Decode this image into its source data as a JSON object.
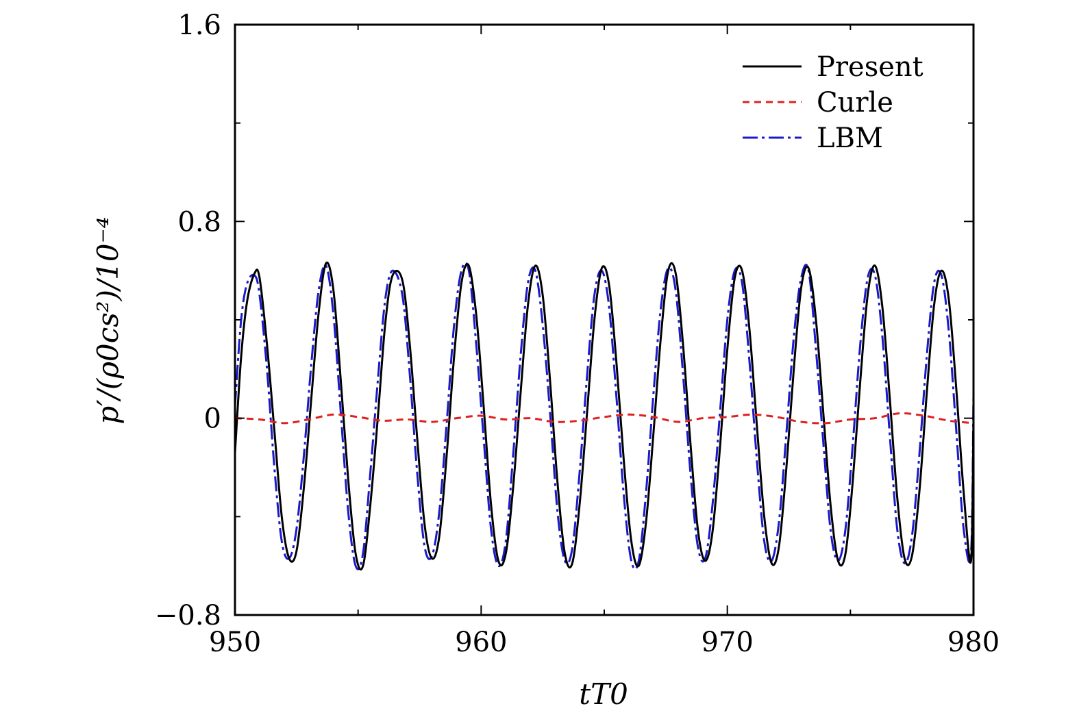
{
  "chart_data": {
    "type": "line",
    "xlabel": "tT0",
    "ylabel": "p′/(ρ0cs²)/10⁻⁴",
    "xlim": [
      950,
      980
    ],
    "ylim": [
      -0.8,
      1.6
    ],
    "x_ticks": [
      950,
      960,
      970,
      980
    ],
    "y_ticks": [
      -0.8,
      0,
      0.8,
      1.6
    ],
    "x_tick_labels": [
      "950",
      "960",
      "970",
      "980"
    ],
    "y_tick_labels": [
      "−0.8",
      "0",
      "0.8",
      "1.6"
    ],
    "grid": false,
    "legend_position": "top-right",
    "series": [
      {
        "name": "Present",
        "color": "#000000",
        "style": "solid",
        "x": [
          950.0,
          950.25,
          950.5,
          950.8,
          951.0,
          951.3,
          951.6,
          951.9,
          952.2,
          952.5,
          952.8,
          953.1,
          953.4,
          953.7,
          954.0,
          954.3,
          954.6,
          954.9,
          955.2,
          955.5,
          955.8,
          956.1,
          956.4,
          956.8,
          957.1,
          957.4,
          957.7,
          958.0,
          958.3,
          958.6,
          958.9,
          959.2,
          959.5,
          959.8,
          960.1,
          960.4,
          960.7,
          961.0,
          961.3,
          961.6,
          961.9,
          962.2,
          962.5,
          962.8,
          963.1,
          963.4,
          963.7,
          964.0,
          964.3,
          964.6,
          964.9,
          965.2,
          965.5,
          965.8,
          966.1,
          966.4,
          966.7,
          967.0,
          967.3,
          967.6,
          967.9,
          968.2,
          968.5,
          968.8,
          969.1,
          969.4,
          969.7,
          970.0,
          970.3,
          970.6,
          970.9,
          971.2,
          971.5,
          971.8,
          972.1,
          972.4,
          972.7,
          973.0,
          973.3,
          973.6,
          973.9,
          974.2,
          974.5,
          974.8,
          975.1,
          975.4,
          975.7,
          976.0,
          976.3,
          976.6,
          976.9,
          977.2,
          977.5,
          977.8,
          978.1,
          978.4,
          978.7,
          979.0,
          979.3,
          979.6,
          979.9,
          980.0
        ],
        "y": [
          -0.14,
          0.25,
          0.48,
          0.59,
          0.57,
          0.3,
          -0.05,
          -0.4,
          -0.57,
          -0.54,
          -0.28,
          0.08,
          0.43,
          0.63,
          0.52,
          0.15,
          -0.25,
          -0.55,
          -0.6,
          -0.35,
          0.0,
          0.38,
          0.58,
          0.56,
          0.3,
          -0.08,
          -0.43,
          -0.57,
          -0.48,
          -0.15,
          0.25,
          0.55,
          0.62,
          0.42,
          0.05,
          -0.35,
          -0.58,
          -0.55,
          -0.28,
          0.1,
          0.46,
          0.62,
          0.5,
          0.15,
          -0.26,
          -0.55,
          -0.59,
          -0.35,
          0.02,
          0.4,
          0.61,
          0.54,
          0.22,
          -0.18,
          -0.5,
          -0.6,
          -0.42,
          -0.06,
          0.33,
          0.6,
          0.59,
          0.3,
          -0.1,
          -0.45,
          -0.58,
          -0.46,
          -0.12,
          0.28,
          0.57,
          0.6,
          0.36,
          -0.03,
          -0.4,
          -0.59,
          -0.52,
          -0.2,
          0.2,
          0.53,
          0.61,
          0.4,
          0.02,
          -0.36,
          -0.58,
          -0.55,
          -0.25,
          0.15,
          0.5,
          0.62,
          0.45,
          0.08,
          -0.32,
          -0.57,
          -0.56,
          -0.3,
          0.1,
          0.46,
          0.6,
          0.48,
          0.12,
          -0.3,
          -0.58,
          0.0
        ]
      },
      {
        "name": "Curle",
        "color": "#e02020",
        "style": "dashed",
        "x": [
          950,
          951,
          952,
          953,
          954,
          955,
          956,
          957,
          958,
          959,
          960,
          961,
          962,
          963,
          964,
          965,
          966,
          967,
          968,
          969,
          970,
          971,
          972,
          973,
          974,
          975,
          976,
          977,
          978,
          979,
          980
        ],
        "y": [
          0.0,
          -0.005,
          -0.02,
          -0.005,
          0.015,
          0.005,
          -0.01,
          -0.005,
          -0.015,
          0.0,
          0.01,
          -0.005,
          0.0,
          -0.015,
          -0.01,
          0.005,
          0.015,
          0.005,
          -0.015,
          0.0,
          0.005,
          0.015,
          0.005,
          -0.015,
          -0.02,
          -0.005,
          0.0,
          0.02,
          0.01,
          -0.01,
          -0.02
        ]
      },
      {
        "name": "LBM",
        "color": "#1a1acc",
        "style": "dashdot",
        "x": [
          950.0,
          950.25,
          950.5,
          950.8,
          951.0,
          951.3,
          951.6,
          951.9,
          952.2,
          952.5,
          952.8,
          953.1,
          953.4,
          953.7,
          954.0,
          954.3,
          954.6,
          954.9,
          955.2,
          955.5,
          955.8,
          956.1,
          956.4,
          956.8,
          957.1,
          957.4,
          957.7,
          958.0,
          958.3,
          958.6,
          958.9,
          959.2,
          959.5,
          959.8,
          960.1,
          960.4,
          960.7,
          961.0,
          961.3,
          961.6,
          961.9,
          962.2,
          962.5,
          962.8,
          963.1,
          963.4,
          963.7,
          964.0,
          964.3,
          964.6,
          964.9,
          965.2,
          965.5,
          965.8,
          966.1,
          966.4,
          966.7,
          967.0,
          967.3,
          967.6,
          967.9,
          968.2,
          968.5,
          968.8,
          969.1,
          969.4,
          969.7,
          970.0,
          970.3,
          970.6,
          970.9,
          971.2,
          971.5,
          971.8,
          972.1,
          972.4,
          972.7,
          973.0,
          973.3,
          973.6,
          973.9,
          974.2,
          974.5,
          974.8,
          975.1,
          975.4,
          975.7,
          976.0,
          976.3,
          976.6,
          976.9,
          977.2,
          977.5,
          977.8,
          978.1,
          978.4,
          978.7,
          979.0,
          979.3,
          979.6,
          979.9,
          980.0
        ],
        "y": [
          0.05,
          0.4,
          0.55,
          0.58,
          0.5,
          0.2,
          -0.2,
          -0.5,
          -0.57,
          -0.45,
          -0.15,
          0.22,
          0.52,
          0.62,
          0.42,
          0.02,
          -0.38,
          -0.6,
          -0.55,
          -0.22,
          0.15,
          0.48,
          0.6,
          0.5,
          0.18,
          -0.22,
          -0.52,
          -0.56,
          -0.38,
          -0.02,
          0.38,
          0.6,
          0.6,
          0.3,
          -0.08,
          -0.45,
          -0.6,
          -0.5,
          -0.15,
          0.25,
          0.55,
          0.6,
          0.38,
          0.02,
          -0.38,
          -0.58,
          -0.53,
          -0.22,
          0.17,
          0.5,
          0.6,
          0.45,
          0.08,
          -0.32,
          -0.58,
          -0.58,
          -0.3,
          0.1,
          0.45,
          0.61,
          0.52,
          0.18,
          -0.22,
          -0.52,
          -0.57,
          -0.35,
          0.02,
          0.4,
          0.6,
          0.55,
          0.23,
          -0.17,
          -0.5,
          -0.58,
          -0.42,
          -0.06,
          0.33,
          0.57,
          0.6,
          0.28,
          -0.1,
          -0.46,
          -0.58,
          -0.45,
          -0.1,
          0.3,
          0.57,
          0.58,
          0.33,
          -0.07,
          -0.45,
          -0.59,
          -0.48,
          -0.15,
          0.25,
          0.55,
          0.58,
          0.35,
          -0.05,
          -0.45,
          -0.55,
          0.1
        ]
      }
    ]
  }
}
